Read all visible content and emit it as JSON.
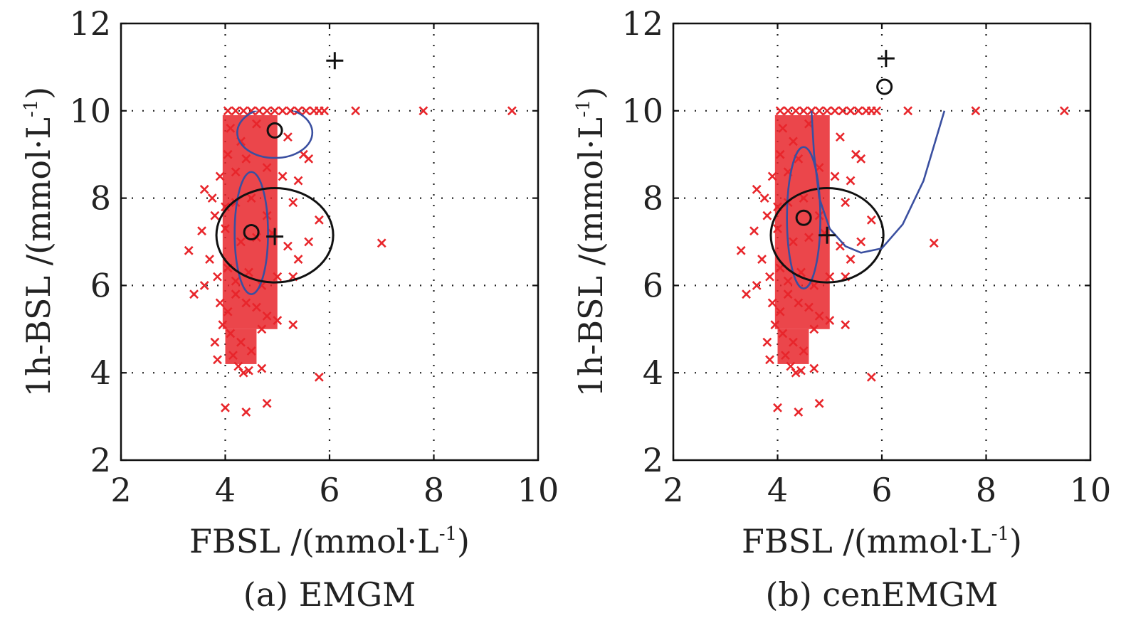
{
  "chart_data": [
    {
      "type": "scatter",
      "caption": "(a) EMGM",
      "xlabel": "FBSL /(mmol·L",
      "xlabel_sup": "-1",
      "xlabel_tail": ")",
      "ylabel": "1h-BSL /(mmol·L",
      "ylabel_sup": "-1",
      "ylabel_tail": ")",
      "xlim": [
        2,
        10
      ],
      "ylim": [
        2,
        12
      ],
      "xticks": [
        2,
        4,
        6,
        8,
        10
      ],
      "yticks": [
        2,
        4,
        6,
        8,
        10,
        12
      ],
      "grid": true,
      "colors": {
        "points": "#e8262b",
        "blue_ellipse": "#3a4fa0",
        "black_ellipse": "#111111"
      },
      "series": [
        {
          "marker": "x",
          "points": [
            [
              4.05,
              10.0
            ],
            [
              4.2,
              10.0
            ],
            [
              4.35,
              10.0
            ],
            [
              4.5,
              10.0
            ],
            [
              4.65,
              10.0
            ],
            [
              4.8,
              10.0
            ],
            [
              4.95,
              10.0
            ],
            [
              5.1,
              10.0
            ],
            [
              5.25,
              10.0
            ],
            [
              5.4,
              10.0
            ],
            [
              5.55,
              10.0
            ],
            [
              5.7,
              10.0
            ],
            [
              5.8,
              10.0
            ],
            [
              5.9,
              10.0
            ],
            [
              6.5,
              10.0
            ],
            [
              7.8,
              10.0
            ],
            [
              9.5,
              10.0
            ],
            [
              4.1,
              9.6
            ],
            [
              4.3,
              9.3
            ],
            [
              4.6,
              9.7
            ],
            [
              5.2,
              9.4
            ],
            [
              5.5,
              9.0
            ],
            [
              5.6,
              8.9
            ],
            [
              4.05,
              9.0
            ],
            [
              4.2,
              8.6
            ],
            [
              4.4,
              8.9
            ],
            [
              4.8,
              8.7
            ],
            [
              5.1,
              8.5
            ],
            [
              5.4,
              8.4
            ],
            [
              3.6,
              8.2
            ],
            [
              3.75,
              8.0
            ],
            [
              3.9,
              8.5
            ],
            [
              4.0,
              7.8
            ],
            [
              4.2,
              7.9
            ],
            [
              4.5,
              8.0
            ],
            [
              4.8,
              7.6
            ],
            [
              5.3,
              7.9
            ],
            [
              5.8,
              7.5
            ],
            [
              3.8,
              7.6
            ],
            [
              3.55,
              7.25
            ],
            [
              3.3,
              6.8
            ],
            [
              4.0,
              7.3
            ],
            [
              4.3,
              7.0
            ],
            [
              4.6,
              7.1
            ],
            [
              4.9,
              7.2
            ],
            [
              5.2,
              6.9
            ],
            [
              5.4,
              6.6
            ],
            [
              5.6,
              7.0
            ],
            [
              7.0,
              6.97
            ],
            [
              3.7,
              6.6
            ],
            [
              3.6,
              6.0
            ],
            [
              3.4,
              5.8
            ],
            [
              3.85,
              6.2
            ],
            [
              4.05,
              6.4
            ],
            [
              4.2,
              6.1
            ],
            [
              4.45,
              6.3
            ],
            [
              4.7,
              6.0
            ],
            [
              5.0,
              6.2
            ],
            [
              5.3,
              6.2
            ],
            [
              3.9,
              5.6
            ],
            [
              4.05,
              5.4
            ],
            [
              4.2,
              5.8
            ],
            [
              4.4,
              5.6
            ],
            [
              4.6,
              5.5
            ],
            [
              4.8,
              5.3
            ],
            [
              5.0,
              5.2
            ],
            [
              5.3,
              5.1
            ],
            [
              3.95,
              5.1
            ],
            [
              4.1,
              4.9
            ],
            [
              4.3,
              4.7
            ],
            [
              4.5,
              4.5
            ],
            [
              4.7,
              5.0
            ],
            [
              3.8,
              4.7
            ],
            [
              3.85,
              4.3
            ],
            [
              4.15,
              4.4
            ],
            [
              4.25,
              4.15
            ],
            [
              4.35,
              4.0
            ],
            [
              4.45,
              4.05
            ],
            [
              4.7,
              4.1
            ],
            [
              5.8,
              3.9
            ],
            [
              4.0,
              3.2
            ],
            [
              4.4,
              3.1
            ],
            [
              4.8,
              3.3
            ]
          ]
        }
      ],
      "markers": [
        {
          "symbol": "+",
          "x": 6.1,
          "y": 11.15
        },
        {
          "symbol": "o",
          "x": 4.95,
          "y": 9.55
        },
        {
          "symbol": "o",
          "x": 4.5,
          "y": 7.22
        },
        {
          "symbol": "+",
          "x": 4.95,
          "y": 7.12
        }
      ],
      "ellipses": [
        {
          "color": "blue",
          "cx": 4.95,
          "cy": 9.5,
          "rx": 0.72,
          "ry": 0.58,
          "partial": true
        },
        {
          "color": "blue",
          "cx": 4.5,
          "cy": 7.2,
          "rx": 0.32,
          "ry": 1.4
        },
        {
          "color": "black",
          "cx": 4.95,
          "cy": 7.15,
          "rx": 1.12,
          "ry": 1.08
        }
      ]
    },
    {
      "type": "scatter",
      "caption": "(b) cenEMGM",
      "xlabel": "FBSL /(mmol·L",
      "xlabel_sup": "-1",
      "xlabel_tail": ")",
      "ylabel": "1h-BSL /(mmol·L",
      "ylabel_sup": "-1",
      "ylabel_tail": ")",
      "xlim": [
        2,
        10
      ],
      "ylim": [
        2,
        12
      ],
      "xticks": [
        2,
        4,
        6,
        8,
        10
      ],
      "yticks": [
        2,
        4,
        6,
        8,
        10,
        12
      ],
      "grid": true,
      "colors": {
        "points": "#e8262b",
        "blue_curve": "#3a4fa0",
        "black_ellipse": "#111111"
      },
      "series": [
        {
          "marker": "x",
          "points": [
            [
              4.05,
              10.0
            ],
            [
              4.2,
              10.0
            ],
            [
              4.35,
              10.0
            ],
            [
              4.5,
              10.0
            ],
            [
              4.65,
              10.0
            ],
            [
              4.8,
              10.0
            ],
            [
              4.95,
              10.0
            ],
            [
              5.1,
              10.0
            ],
            [
              5.25,
              10.0
            ],
            [
              5.4,
              10.0
            ],
            [
              5.55,
              10.0
            ],
            [
              5.7,
              10.0
            ],
            [
              5.8,
              10.0
            ],
            [
              5.9,
              10.0
            ],
            [
              6.5,
              10.0
            ],
            [
              7.8,
              10.0
            ],
            [
              9.5,
              10.0
            ],
            [
              4.1,
              9.6
            ],
            [
              4.3,
              9.3
            ],
            [
              4.6,
              9.7
            ],
            [
              5.2,
              9.4
            ],
            [
              5.5,
              9.0
            ],
            [
              5.6,
              8.9
            ],
            [
              4.05,
              9.0
            ],
            [
              4.2,
              8.6
            ],
            [
              4.4,
              8.9
            ],
            [
              4.8,
              8.7
            ],
            [
              5.1,
              8.5
            ],
            [
              5.4,
              8.4
            ],
            [
              3.6,
              8.2
            ],
            [
              3.75,
              8.0
            ],
            [
              3.9,
              8.5
            ],
            [
              4.0,
              7.8
            ],
            [
              4.2,
              7.9
            ],
            [
              4.5,
              8.0
            ],
            [
              4.8,
              7.6
            ],
            [
              5.3,
              7.9
            ],
            [
              5.8,
              7.5
            ],
            [
              3.8,
              7.6
            ],
            [
              3.55,
              7.25
            ],
            [
              3.3,
              6.8
            ],
            [
              4.0,
              7.3
            ],
            [
              4.3,
              7.0
            ],
            [
              4.6,
              7.1
            ],
            [
              4.9,
              7.2
            ],
            [
              5.2,
              6.9
            ],
            [
              5.4,
              6.6
            ],
            [
              5.6,
              7.0
            ],
            [
              7.0,
              6.97
            ],
            [
              3.7,
              6.6
            ],
            [
              3.6,
              6.0
            ],
            [
              3.4,
              5.8
            ],
            [
              3.85,
              6.2
            ],
            [
              4.05,
              6.4
            ],
            [
              4.2,
              6.1
            ],
            [
              4.45,
              6.3
            ],
            [
              4.7,
              6.0
            ],
            [
              5.0,
              6.2
            ],
            [
              5.3,
              6.2
            ],
            [
              3.9,
              5.6
            ],
            [
              4.05,
              5.4
            ],
            [
              4.2,
              5.8
            ],
            [
              4.4,
              5.6
            ],
            [
              4.6,
              5.5
            ],
            [
              4.8,
              5.3
            ],
            [
              5.0,
              5.2
            ],
            [
              5.3,
              5.1
            ],
            [
              3.95,
              5.1
            ],
            [
              4.1,
              4.9
            ],
            [
              4.3,
              4.7
            ],
            [
              4.5,
              4.5
            ],
            [
              4.7,
              5.0
            ],
            [
              3.8,
              4.7
            ],
            [
              3.85,
              4.3
            ],
            [
              4.15,
              4.4
            ],
            [
              4.25,
              4.15
            ],
            [
              4.35,
              4.0
            ],
            [
              4.45,
              4.05
            ],
            [
              4.7,
              4.1
            ],
            [
              5.8,
              3.9
            ],
            [
              4.0,
              3.2
            ],
            [
              4.4,
              3.1
            ],
            [
              4.8,
              3.3
            ]
          ]
        }
      ],
      "markers": [
        {
          "symbol": "+",
          "x": 6.08,
          "y": 11.2
        },
        {
          "symbol": "o",
          "x": 6.05,
          "y": 10.55
        },
        {
          "symbol": "o",
          "x": 4.5,
          "y": 7.55
        },
        {
          "symbol": "+",
          "x": 4.95,
          "y": 7.15
        }
      ],
      "ellipses": [
        {
          "color": "blue",
          "cx": 4.5,
          "cy": 7.55,
          "rx": 0.32,
          "ry": 1.62
        },
        {
          "color": "black",
          "cx": 4.95,
          "cy": 7.15,
          "rx": 1.08,
          "ry": 1.08
        }
      ],
      "curve": {
        "color": "blue",
        "points": [
          [
            4.65,
            10.0
          ],
          [
            4.7,
            9.0
          ],
          [
            4.8,
            8.0
          ],
          [
            5.0,
            7.3
          ],
          [
            5.3,
            6.9
          ],
          [
            5.6,
            6.75
          ],
          [
            6.0,
            6.85
          ],
          [
            6.4,
            7.4
          ],
          [
            6.8,
            8.4
          ],
          [
            7.2,
            10.0
          ]
        ]
      }
    }
  ]
}
